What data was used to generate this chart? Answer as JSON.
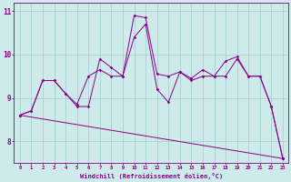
{
  "xlabel": "Windchill (Refroidissement éolien,°C)",
  "background_color": "#ceeaea",
  "grid_color": "#9ecece",
  "line_color": "#880088",
  "x_hours": [
    0,
    1,
    2,
    3,
    4,
    5,
    6,
    7,
    8,
    9,
    10,
    11,
    12,
    13,
    14,
    15,
    16,
    17,
    18,
    19,
    20,
    21,
    22,
    23
  ],
  "series1": [
    8.6,
    8.7,
    9.4,
    9.4,
    9.1,
    8.8,
    8.8,
    9.9,
    9.7,
    9.5,
    10.4,
    10.7,
    9.2,
    8.9,
    9.6,
    9.4,
    9.5,
    9.5,
    9.5,
    9.9,
    9.5,
    9.5,
    8.8,
    7.6
  ],
  "series2": [
    8.6,
    8.7,
    9.4,
    9.4,
    9.1,
    8.85,
    9.5,
    9.65,
    9.5,
    9.5,
    10.9,
    10.85,
    9.55,
    9.5,
    9.6,
    9.45,
    9.65,
    9.5,
    9.85,
    9.95,
    9.5,
    9.5,
    8.8,
    7.6
  ],
  "trend_x": [
    0,
    23
  ],
  "trend_y": [
    8.6,
    7.6
  ],
  "ylim": [
    7.5,
    11.2
  ],
  "xlim": [
    -0.5,
    23.5
  ],
  "yticks": [
    8,
    9,
    10,
    11
  ]
}
